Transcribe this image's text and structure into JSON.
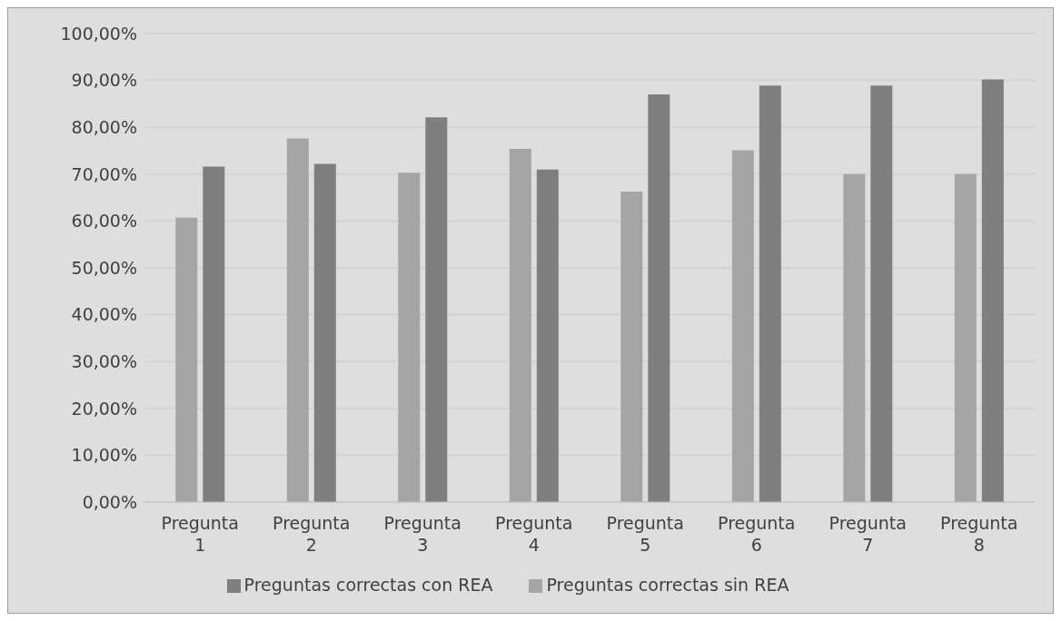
{
  "chart_data": {
    "type": "bar",
    "categories": [
      "Pregunta 1",
      "Pregunta 2",
      "Pregunta 3",
      "Pregunta 4",
      "Pregunta 5",
      "Pregunta 6",
      "Pregunta 7",
      "Pregunta 8"
    ],
    "series": [
      {
        "name": "Preguntas correctas sin REA",
        "color": "#a5a5a5",
        "values": [
          60.7,
          77.6,
          70.3,
          75.4,
          66.3,
          75.1,
          70.0,
          70.0
        ]
      },
      {
        "name": "Preguntas correctas con  REA",
        "color": "#7f7f7f",
        "values": [
          71.6,
          72.2,
          82.1,
          71.0,
          87.0,
          88.9,
          88.9,
          90.2
        ]
      }
    ],
    "ylim": [
      0,
      100
    ],
    "yticks": [
      {
        "value": 0,
        "label": "0,00%"
      },
      {
        "value": 10,
        "label": "10,00%"
      },
      {
        "value": 20,
        "label": "20,00%"
      },
      {
        "value": 30,
        "label": "30,00%"
      },
      {
        "value": 40,
        "label": "40,00%"
      },
      {
        "value": 50,
        "label": "50,00%"
      },
      {
        "value": 60,
        "label": "60,00%"
      },
      {
        "value": 70,
        "label": "70,00%"
      },
      {
        "value": 80,
        "label": "80,00%"
      },
      {
        "value": 90,
        "label": "90,00%"
      },
      {
        "value": 100,
        "label": "100,00%"
      }
    ],
    "grid": "y",
    "legend": "bottom"
  }
}
